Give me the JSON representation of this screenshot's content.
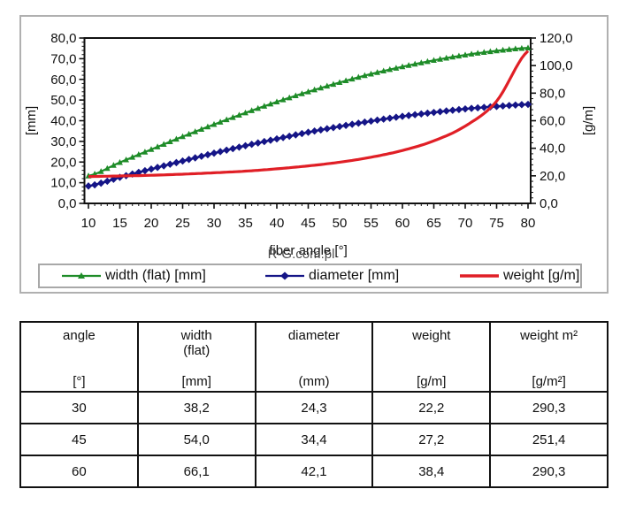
{
  "chart_data": {
    "type": "line",
    "title": "",
    "xlabel": "fiber angle [°]",
    "watermark": "R-G.com.pl",
    "x_range": [
      10,
      80
    ],
    "x_tick_labels": [
      "10",
      "15",
      "20",
      "25",
      "30",
      "35",
      "40",
      "45",
      "50",
      "55",
      "60",
      "65",
      "70",
      "75",
      "80"
    ],
    "x": [
      10,
      15,
      20,
      25,
      30,
      35,
      40,
      45,
      50,
      55,
      60,
      65,
      70,
      75,
      80
    ],
    "marker_step_deg": 1,
    "y_left": {
      "label": "[mm]",
      "range": [
        0,
        80
      ],
      "tick_step": 10,
      "tick_labels": [
        "0,0",
        "10,0",
        "20,0",
        "30,0",
        "40,0",
        "50,0",
        "60,0",
        "70,0",
        "80,0"
      ]
    },
    "y_right": {
      "label": "[g/m]",
      "range": [
        0,
        120
      ],
      "tick_step": 20,
      "tick_labels": [
        "0,0",
        "20,0",
        "40,0",
        "60,0",
        "80,0",
        "100,0",
        "120,0"
      ]
    },
    "legend_position": "bottom",
    "grid": false,
    "series": [
      {
        "name": "width (flat) [mm]",
        "axis": "left",
        "color": "#1e8c28",
        "marker": "triangle",
        "line_width": 2.2,
        "values": [
          13.3,
          19.8,
          26.1,
          32.3,
          38.2,
          43.8,
          49.1,
          54.0,
          58.5,
          62.6,
          66.1,
          69.2,
          71.8,
          73.8,
          75.2
        ]
      },
      {
        "name": "diameter [mm]",
        "axis": "left",
        "color": "#151587",
        "marker": "diamond",
        "line_width": 2.4,
        "values": [
          8.4,
          12.6,
          16.6,
          20.5,
          24.3,
          27.9,
          31.2,
          34.4,
          37.2,
          39.8,
          42.1,
          44.0,
          45.7,
          46.9,
          47.9
        ]
      },
      {
        "name": "weight [g/m]",
        "axis": "right",
        "color": "#e01f26",
        "marker": "none",
        "line_width": 3.2,
        "values": [
          19.5,
          19.9,
          20.4,
          21.2,
          22.2,
          23.4,
          25.1,
          27.2,
          29.9,
          33.5,
          38.4,
          45.4,
          56.1,
          74.2,
          110.6
        ]
      }
    ]
  },
  "table": {
    "columns": [
      {
        "name": "angle",
        "sub": "",
        "unit": "[°]"
      },
      {
        "name": "width",
        "sub": "(flat)",
        "unit": "[mm]"
      },
      {
        "name": "diameter",
        "sub": "",
        "unit": "(mm)"
      },
      {
        "name": "weight",
        "sub": "",
        "unit": "[g/m]"
      },
      {
        "name": "weight m²",
        "sub": "",
        "unit": "[g/m²]"
      }
    ],
    "rows": [
      [
        "30",
        "38,2",
        "24,3",
        "22,2",
        "290,3"
      ],
      [
        "45",
        "54,0",
        "34,4",
        "27,2",
        "251,4"
      ],
      [
        "60",
        "66,1",
        "42,1",
        "38,4",
        "290,3"
      ]
    ]
  }
}
